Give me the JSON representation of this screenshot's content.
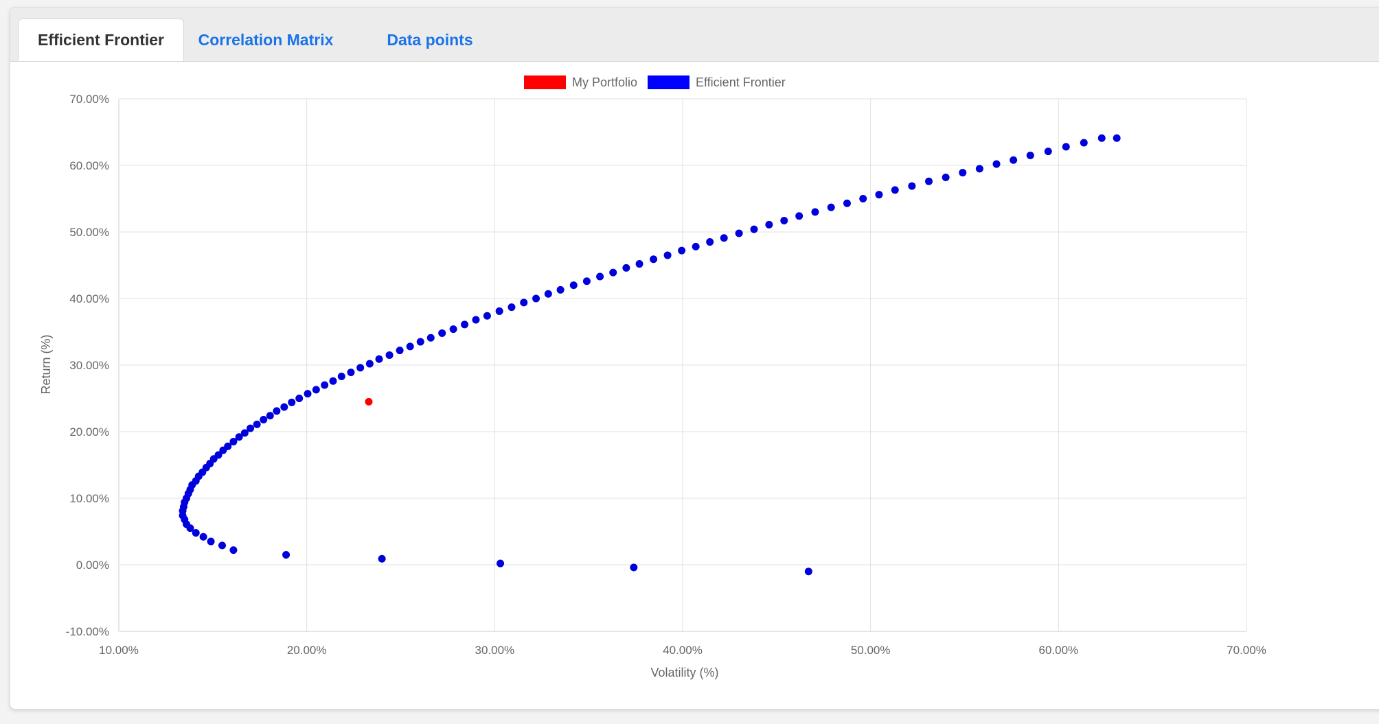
{
  "tabs": [
    {
      "label": "Efficient Frontier",
      "active": true
    },
    {
      "label": "Correlation Matrix",
      "active": false
    },
    {
      "label": "Data points",
      "active": false
    }
  ],
  "colors": {
    "portfolio": "#ff0000",
    "frontier": "#0000ff",
    "frontier_point": "#0000dd",
    "grid": "#e0e0e0",
    "axis": "#cccccc",
    "active_tab_text": "#333333",
    "tab_link": "#1a73e8"
  },
  "chart_data": {
    "type": "scatter",
    "xlabel": "Volatility (%)",
    "ylabel": "Return (%)",
    "xlim": [
      10,
      70
    ],
    "ylim": [
      -10,
      70
    ],
    "x_ticks": [
      "10.00%",
      "20.00%",
      "30.00%",
      "40.00%",
      "50.00%",
      "60.00%",
      "70.00%"
    ],
    "y_ticks": [
      "70.00%",
      "60.00%",
      "50.00%",
      "40.00%",
      "30.00%",
      "20.00%",
      "10.00%",
      "0.00%",
      "-10.00%"
    ],
    "grid": true,
    "legend_position": "top-center",
    "series": [
      {
        "name": "My Portfolio",
        "points": [
          [
            23.3,
            24.5
          ]
        ]
      },
      {
        "name": "Efficient Frontier",
        "points": [
          [
            46.7,
            -1.0
          ],
          [
            37.4,
            -0.4
          ],
          [
            30.3,
            0.2
          ],
          [
            24.0,
            0.9
          ],
          [
            18.9,
            1.5
          ],
          [
            16.1,
            2.2
          ],
          [
            15.5,
            2.9
          ],
          [
            14.9,
            3.5
          ],
          [
            14.5,
            4.2
          ],
          [
            14.1,
            4.8
          ],
          [
            13.8,
            5.5
          ],
          [
            13.6,
            6.1
          ],
          [
            13.5,
            6.8
          ],
          [
            13.4,
            7.4
          ],
          [
            13.4,
            8.1
          ],
          [
            13.45,
            8.7
          ],
          [
            13.5,
            9.4
          ],
          [
            13.6,
            10.0
          ],
          [
            13.7,
            10.7
          ],
          [
            13.8,
            11.3
          ],
          [
            13.9,
            12.0
          ],
          [
            14.1,
            12.6
          ],
          [
            14.25,
            13.3
          ],
          [
            14.45,
            13.9
          ],
          [
            14.65,
            14.6
          ],
          [
            14.85,
            15.2
          ],
          [
            15.05,
            15.9
          ],
          [
            15.3,
            16.5
          ],
          [
            15.55,
            17.2
          ],
          [
            15.8,
            17.8
          ],
          [
            16.1,
            18.5
          ],
          [
            16.4,
            19.2
          ],
          [
            16.7,
            19.8
          ],
          [
            17.0,
            20.5
          ],
          [
            17.35,
            21.1
          ],
          [
            17.7,
            21.8
          ],
          [
            18.05,
            22.4
          ],
          [
            18.4,
            23.1
          ],
          [
            18.8,
            23.7
          ],
          [
            19.2,
            24.4
          ],
          [
            19.6,
            25.0
          ],
          [
            20.05,
            25.7
          ],
          [
            20.5,
            26.3
          ],
          [
            20.95,
            27.0
          ],
          [
            21.4,
            27.6
          ],
          [
            21.85,
            28.3
          ],
          [
            22.35,
            28.9
          ],
          [
            22.85,
            29.6
          ],
          [
            23.35,
            30.2
          ],
          [
            23.85,
            30.9
          ],
          [
            24.4,
            31.5
          ],
          [
            24.95,
            32.2
          ],
          [
            25.5,
            32.8
          ],
          [
            26.05,
            33.5
          ],
          [
            26.6,
            34.1
          ],
          [
            27.2,
            34.8
          ],
          [
            27.8,
            35.4
          ],
          [
            28.4,
            36.1
          ],
          [
            29.0,
            36.8
          ],
          [
            29.6,
            37.4
          ],
          [
            30.25,
            38.1
          ],
          [
            30.9,
            38.7
          ],
          [
            31.55,
            39.4
          ],
          [
            32.2,
            40.0
          ],
          [
            32.85,
            40.7
          ],
          [
            33.5,
            41.3
          ],
          [
            34.2,
            42.0
          ],
          [
            34.9,
            42.6
          ],
          [
            35.6,
            43.3
          ],
          [
            36.3,
            43.9
          ],
          [
            37.0,
            44.6
          ],
          [
            37.7,
            45.2
          ],
          [
            38.45,
            45.9
          ],
          [
            39.2,
            46.5
          ],
          [
            39.95,
            47.2
          ],
          [
            40.7,
            47.8
          ],
          [
            41.45,
            48.5
          ],
          [
            42.2,
            49.1
          ],
          [
            43.0,
            49.8
          ],
          [
            43.8,
            50.4
          ],
          [
            44.6,
            51.1
          ],
          [
            45.4,
            51.7
          ],
          [
            46.2,
            52.4
          ],
          [
            47.05,
            53.0
          ],
          [
            47.9,
            53.7
          ],
          [
            48.75,
            54.3
          ],
          [
            49.6,
            55.0
          ],
          [
            50.45,
            55.6
          ],
          [
            51.3,
            56.3
          ],
          [
            52.2,
            56.9
          ],
          [
            53.1,
            57.6
          ],
          [
            54.0,
            58.2
          ],
          [
            54.9,
            58.9
          ],
          [
            55.8,
            59.5
          ],
          [
            56.7,
            60.2
          ],
          [
            57.6,
            60.8
          ],
          [
            58.5,
            61.5
          ],
          [
            59.45,
            62.1
          ],
          [
            60.4,
            62.8
          ],
          [
            61.35,
            63.4
          ],
          [
            62.3,
            64.1
          ],
          [
            63.1,
            64.1
          ]
        ]
      }
    ]
  }
}
